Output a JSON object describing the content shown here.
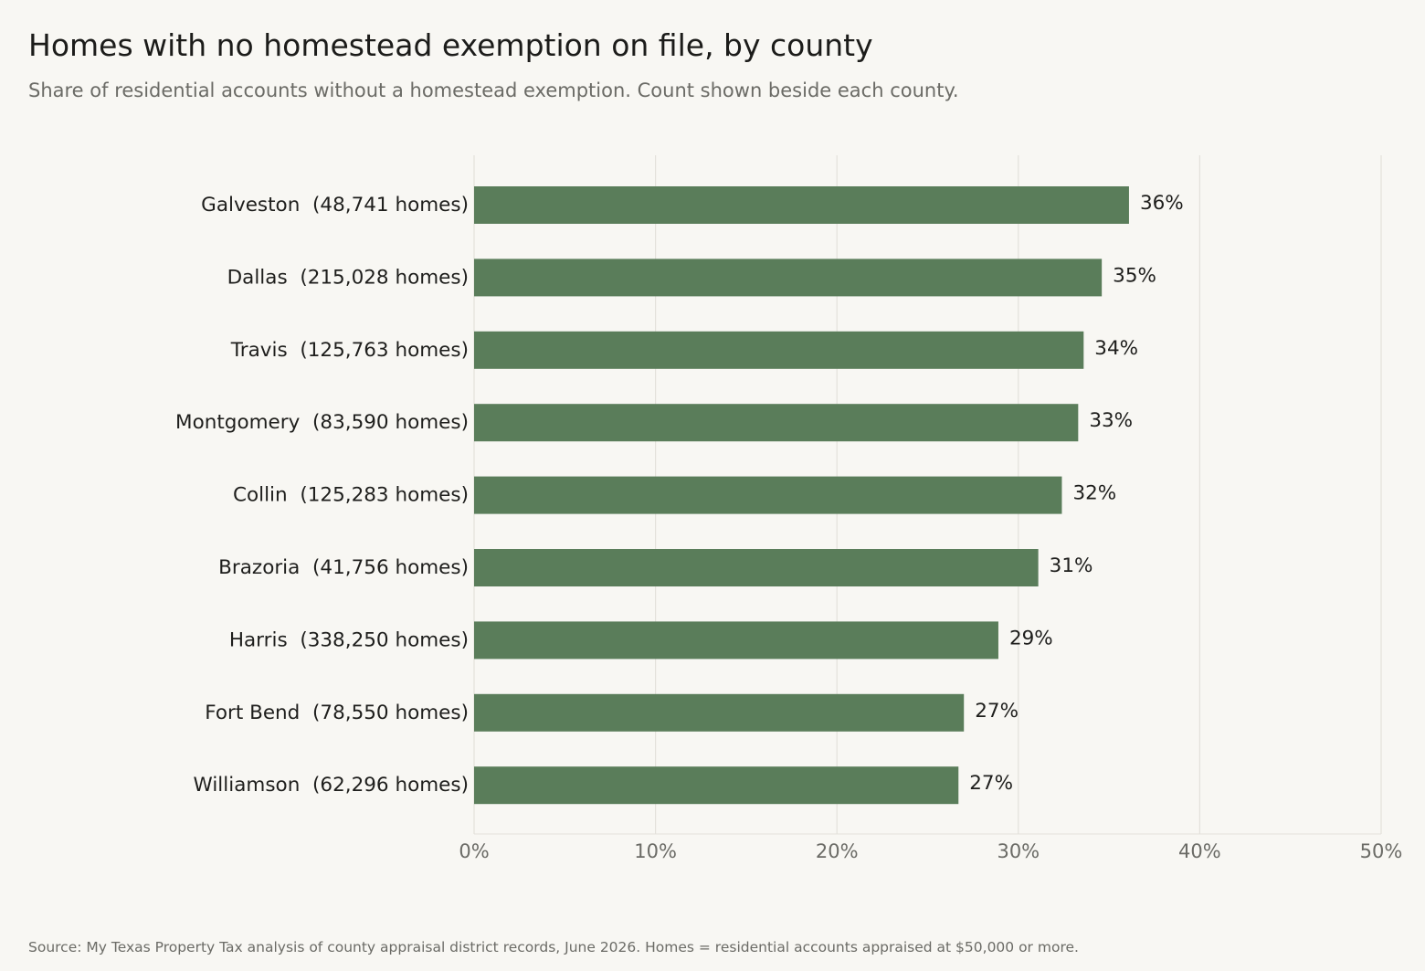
{
  "title": "Homes with no homestead exemption on file, by county",
  "subtitle": "Share of residential accounts without a homestead exemption. Count shown beside each county.",
  "source": "Source: My Texas Property Tax analysis of county appraisal district records, June 2026. Homes = residential accounts appraised at $50,000 or more.",
  "colors": {
    "bar": "#5a7d5a",
    "background": "#f8f7f3",
    "grid": "#e3e1db",
    "tick_text": "#6b6b66",
    "label_text": "#1e1e1c"
  },
  "chart_data": {
    "type": "bar",
    "orientation": "horizontal",
    "categories": [
      "Galveston  (48,741 homes)",
      "Dallas  (215,028 homes)",
      "Travis  (125,763 homes)",
      "Montgomery  (83,590 homes)",
      "Collin  (125,283 homes)",
      "Brazoria  (41,756 homes)",
      "Harris  (338,250 homes)",
      "Fort Bend  (78,550 homes)",
      "Williamson  (62,296 homes)"
    ],
    "values": [
      36.1,
      34.6,
      33.6,
      33.3,
      32.4,
      31.1,
      28.9,
      27.0,
      26.7
    ],
    "value_labels": [
      "36%",
      "35%",
      "34%",
      "33%",
      "32%",
      "31%",
      "29%",
      "27%",
      "27%"
    ],
    "xlim": [
      0,
      50
    ],
    "xticks": [
      0,
      10,
      20,
      30,
      40,
      50
    ],
    "xtick_labels": [
      "0%",
      "10%",
      "20%",
      "30%",
      "40%",
      "50%"
    ],
    "grid": true,
    "legend": "none",
    "xlabel": "",
    "ylabel": ""
  }
}
